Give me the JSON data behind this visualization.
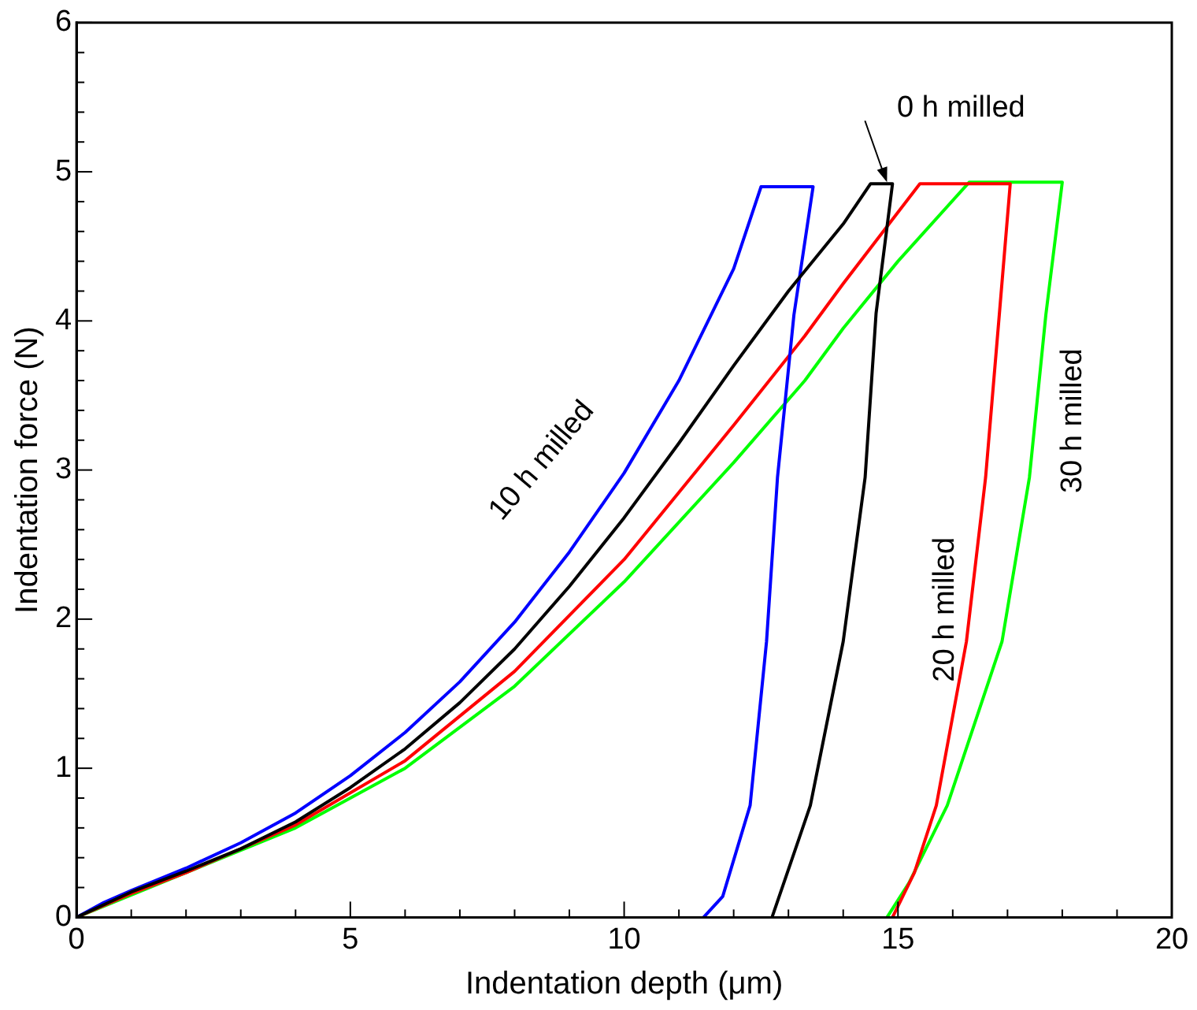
{
  "chart_data": {
    "type": "line",
    "xlabel": "Indentation depth (μm)",
    "ylabel": "Indentation force (N)",
    "xlim": [
      0,
      20
    ],
    "ylim": [
      0,
      6
    ],
    "xticks": [
      0,
      {
        "value": 1,
        "label": null
      },
      {
        "value": 2,
        "label": null
      },
      {
        "value": 3,
        "label": null
      },
      {
        "value": 4,
        "label": null
      },
      5,
      {
        "value": 6,
        "label": null
      },
      {
        "value": 7,
        "label": null
      },
      {
        "value": 8,
        "label": null
      },
      {
        "value": 9,
        "label": null
      },
      10,
      {
        "value": 11,
        "label": null
      },
      {
        "value": 12,
        "label": null
      },
      {
        "value": 13,
        "label": null
      },
      {
        "value": 14,
        "label": null
      },
      15,
      {
        "value": 16,
        "label": null
      },
      {
        "value": 17,
        "label": null
      },
      {
        "value": 18,
        "label": null
      },
      {
        "value": 19,
        "label": null
      },
      20
    ],
    "yticks": [
      0,
      {
        "value": 0.2,
        "label": null
      },
      {
        "value": 0.4,
        "label": null
      },
      {
        "value": 0.6,
        "label": null
      },
      {
        "value": 0.8,
        "label": null
      },
      1,
      {
        "value": 1.2,
        "label": null
      },
      {
        "value": 1.4,
        "label": null
      },
      {
        "value": 1.6,
        "label": null
      },
      {
        "value": 1.8,
        "label": null
      },
      2,
      {
        "value": 2.2,
        "label": null
      },
      {
        "value": 2.4,
        "label": null
      },
      {
        "value": 2.6,
        "label": null
      },
      {
        "value": 2.8,
        "label": null
      },
      3,
      {
        "value": 3.2,
        "label": null
      },
      {
        "value": 3.4,
        "label": null
      },
      {
        "value": 3.6,
        "label": null
      },
      {
        "value": 3.8,
        "label": null
      },
      4,
      {
        "value": 4.2,
        "label": null
      },
      {
        "value": 4.4,
        "label": null
      },
      {
        "value": 4.6,
        "label": null
      },
      {
        "value": 4.8,
        "label": null
      },
      5,
      {
        "value": 5.2,
        "label": null
      },
      {
        "value": 5.4,
        "label": null
      },
      {
        "value": 5.6,
        "label": null
      },
      {
        "value": 5.8,
        "label": null
      },
      6
    ],
    "grid": false,
    "legend": false,
    "marker": "none",
    "line_style": "solid",
    "series": [
      {
        "color": "#000000",
        "x": [
          0,
          1,
          2,
          3,
          4,
          5,
          6,
          7,
          8,
          9,
          10,
          11,
          12,
          13,
          14,
          14.5,
          14.9,
          14.6,
          14.4,
          14.0,
          13.4,
          12.7
        ],
        "values": [
          0,
          0.17,
          0.31,
          0.46,
          0.64,
          0.87,
          1.13,
          1.44,
          1.8,
          2.22,
          2.68,
          3.18,
          3.7,
          4.2,
          4.65,
          4.92,
          4.92,
          4.05,
          2.95,
          1.85,
          0.75,
          0
        ]
      },
      {
        "color": "#0000ff",
        "x": [
          0,
          0.5,
          1,
          2,
          3,
          4,
          5,
          6,
          7,
          8,
          9,
          10,
          11,
          12,
          12.5,
          13.45,
          13.1,
          12.8,
          12.6,
          12.3,
          11.8,
          11.45
        ],
        "values": [
          0,
          0.1,
          0.18,
          0.33,
          0.5,
          0.7,
          0.95,
          1.24,
          1.58,
          1.98,
          2.45,
          2.98,
          3.6,
          4.35,
          4.9,
          4.9,
          4.04,
          2.95,
          1.85,
          0.75,
          0.14,
          0
        ]
      },
      {
        "color": "#ff0000",
        "x": [
          0,
          1,
          2,
          4,
          6,
          8,
          10,
          12,
          13.3,
          14,
          15.4,
          17.05,
          16.85,
          16.6,
          16.25,
          15.7,
          15.3,
          14.9
        ],
        "values": [
          0,
          0.16,
          0.3,
          0.62,
          1.05,
          1.65,
          2.4,
          3.3,
          3.9,
          4.25,
          4.92,
          4.92,
          4.04,
          2.95,
          1.85,
          0.75,
          0.3,
          0
        ]
      },
      {
        "color": "#00ff00",
        "x": [
          0,
          1,
          2,
          4,
          6,
          8,
          10,
          12,
          13.3,
          14,
          15,
          16.3,
          18.0,
          17.7,
          17.4,
          16.9,
          15.9,
          15.2,
          14.8
        ],
        "values": [
          0,
          null,
          null,
          0.6,
          1.0,
          1.55,
          2.25,
          3.05,
          3.6,
          3.95,
          4.4,
          4.93,
          4.93,
          4.04,
          2.95,
          1.85,
          0.75,
          0.23,
          0
        ]
      }
    ],
    "annotations": [
      {
        "text": "0 h milled",
        "x": 14.8,
        "y": 4.92
      },
      "10 h milled",
      "20 h milled",
      "30 h milled"
    ]
  }
}
